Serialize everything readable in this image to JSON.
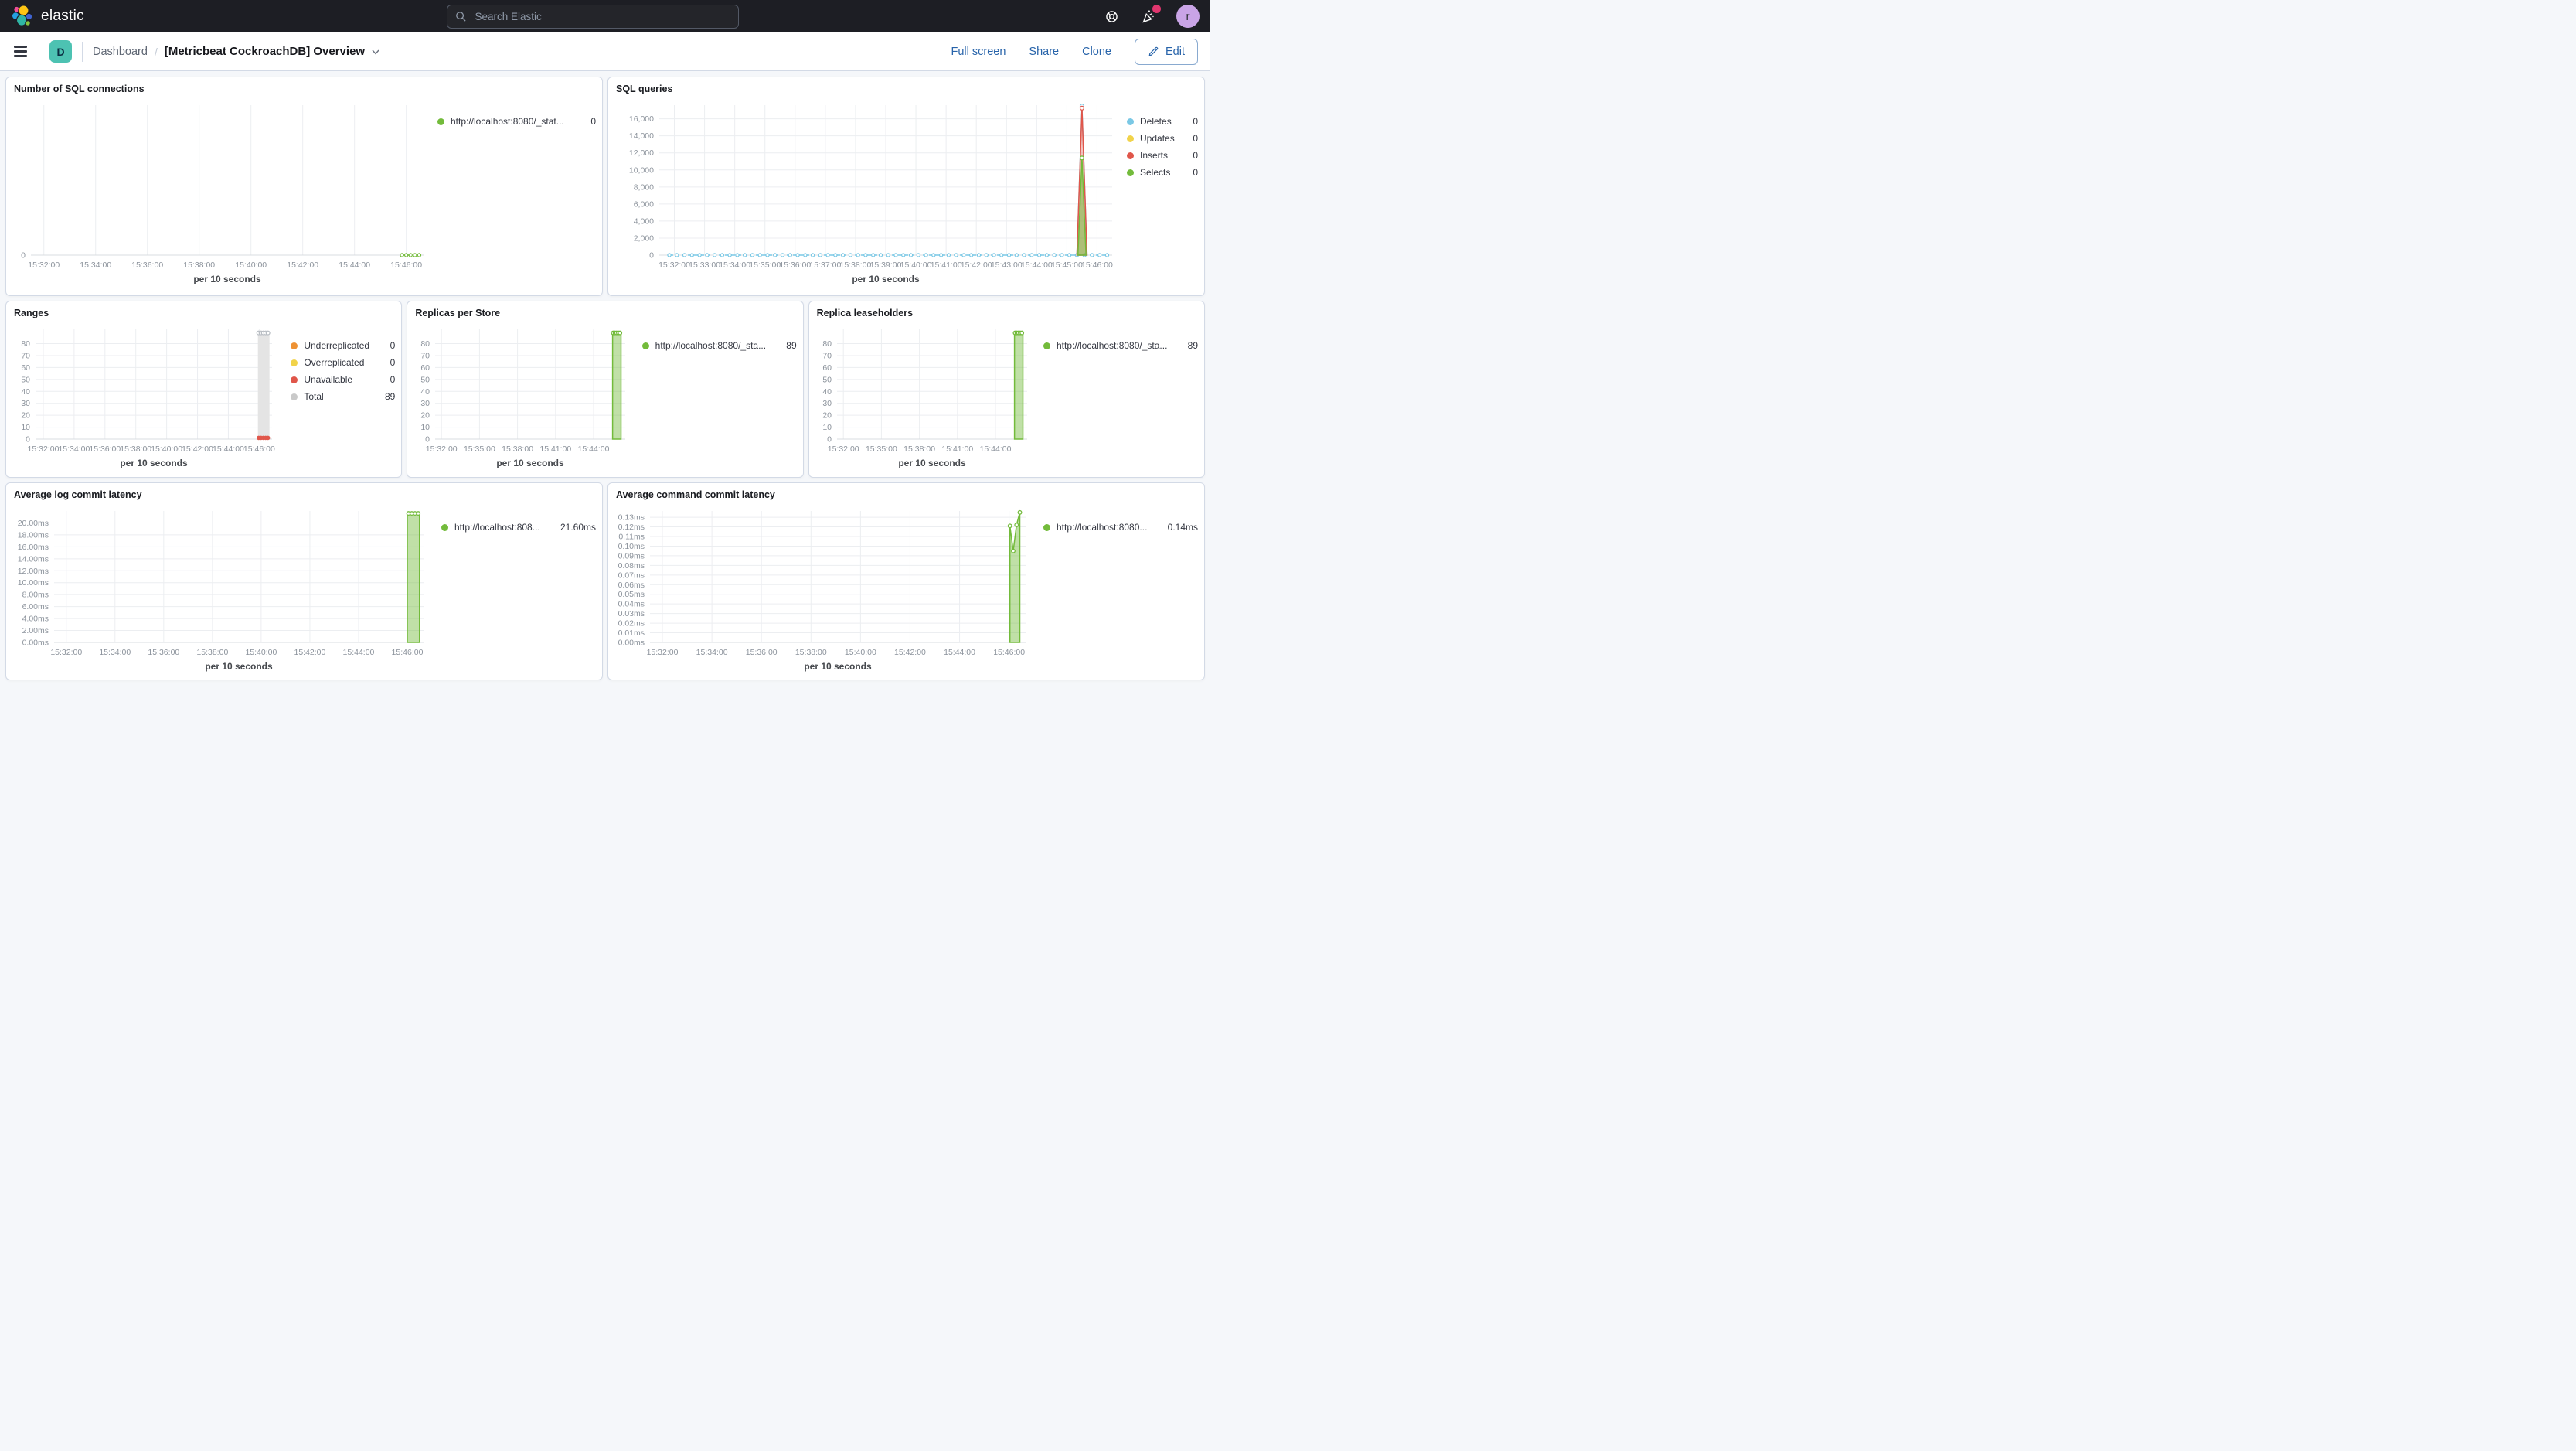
{
  "header": {
    "logo_text": "elastic",
    "search_placeholder": "Search Elastic",
    "avatar_initial": "r"
  },
  "nav": {
    "space_badge": "D",
    "breadcrumb_root": "Dashboard",
    "breadcrumb_current": "[Metricbeat CockroachDB] Overview",
    "full_screen": "Full screen",
    "share": "Share",
    "clone": "Clone",
    "edit_label": "Edit"
  },
  "colors": {
    "header_bg": "#1D1E24",
    "link_blue": "#2864AA",
    "badge_teal": "#4DC2B2",
    "avatar_purple": "#C9A4E6",
    "notification_pink": "#E0366E",
    "series_green": "#73BB3B",
    "series_blue": "#7AC8E5",
    "series_red": "#E0564A",
    "series_yellow": "#F1D34A",
    "series_orange": "#EE9234",
    "series_gray": "#C9C9C9"
  },
  "panels": [
    {
      "title": "Number of SQL connections",
      "legend": {
        "items": [
          {
            "label": "http://localhost:8080/_stat...",
            "value": "0",
            "color": "#73BB3B"
          }
        ]
      },
      "chart_data": {
        "type": "line",
        "x_axis_title": "per 10 seconds",
        "x_domain": [
          "15:31:30",
          "15:46:40"
        ],
        "y_domain": [
          0,
          10
        ],
        "margin_left": 30,
        "x_ticks": [
          "15:32:00",
          "15:34:00",
          "15:36:00",
          "15:38:00",
          "15:40:00",
          "15:42:00",
          "15:44:00",
          "15:46:00"
        ],
        "y_ticks": [
          {
            "label": "0",
            "v": 0
          }
        ],
        "marks": [
          {
            "type": "dashline",
            "color": "#73BB3B",
            "v": 0,
            "t0": "15:45:50",
            "t1": "15:46:30",
            "marker_every": 10
          }
        ]
      }
    },
    {
      "title": "SQL queries",
      "legend": {
        "items": [
          {
            "label": "Deletes",
            "value": "0",
            "color": "#7AC8E5"
          },
          {
            "label": "Updates",
            "value": "0",
            "color": "#F1D34A"
          },
          {
            "label": "Inserts",
            "value": "0",
            "color": "#E0564A"
          },
          {
            "label": "Selects",
            "value": "0",
            "color": "#73BB3B"
          }
        ]
      },
      "chart_data": {
        "type": "line",
        "x_axis_title": "per 10 seconds",
        "x_domain": [
          "15:31:30",
          "15:46:30"
        ],
        "y_domain": [
          0,
          17600
        ],
        "margin_left": 64,
        "x_ticks": [
          "15:32:00",
          "15:33:00",
          "15:34:00",
          "15:35:00",
          "15:36:00",
          "15:37:00",
          "15:38:00",
          "15:39:00",
          "15:40:00",
          "15:41:00",
          "15:42:00",
          "15:43:00",
          "15:44:00",
          "15:45:00",
          "15:46:00"
        ],
        "y_ticks": [
          {
            "label": "0",
            "v": 0
          },
          {
            "label": "2,000",
            "v": 2000
          },
          {
            "label": "4,000",
            "v": 4000
          },
          {
            "label": "6,000",
            "v": 6000
          },
          {
            "label": "8,000",
            "v": 8000
          },
          {
            "label": "10,000",
            "v": 10000
          },
          {
            "label": "12,000",
            "v": 12000
          },
          {
            "label": "14,000",
            "v": 14000
          },
          {
            "label": "16,000",
            "v": 16000
          }
        ],
        "marks": [
          {
            "type": "dashline",
            "color": "#7AC8E5",
            "v": 0,
            "t0": "15:31:50",
            "t1": "15:46:20",
            "marker_every": 15
          },
          {
            "type": "area",
            "points": [
              [
                "15:45:20",
                0
              ],
              [
                "15:45:30",
                17500
              ],
              [
                "15:45:40",
                0
              ]
            ],
            "fill": "#7AC8E5",
            "fill_opacity": 0,
            "stroke": "#7AC8E5"
          },
          {
            "type": "area",
            "points": [
              [
                "15:45:20",
                0
              ],
              [
                "15:45:30",
                17250
              ],
              [
                "15:45:40",
                0
              ]
            ],
            "fill": "#E0564A",
            "fill_opacity": 0.35,
            "stroke": "#E0564A"
          },
          {
            "type": "area",
            "points": [
              [
                "15:45:22",
                0
              ],
              [
                "15:45:30",
                11400
              ],
              [
                "15:45:38",
                0
              ]
            ],
            "fill": "#73BB3B",
            "fill_opacity": 0.55,
            "stroke": "#73BB3B"
          },
          {
            "type": "dots",
            "color": "#7AC8E5",
            "filled": false,
            "points": [
              [
                "15:45:30",
                17500
              ]
            ]
          },
          {
            "type": "dots",
            "color": "#E0564A",
            "filled": false,
            "points": [
              [
                "15:45:30",
                17250
              ]
            ]
          },
          {
            "type": "dots",
            "color": "#73BB3B",
            "filled": false,
            "points": [
              [
                "15:45:30",
                11400
              ]
            ]
          }
        ]
      }
    },
    {
      "title": "Ranges",
      "legend": {
        "items": [
          {
            "label": "Underreplicated",
            "value": "0",
            "color": "#EE9234"
          },
          {
            "label": "Overreplicated",
            "value": "0",
            "color": "#F1D34A"
          },
          {
            "label": "Unavailable",
            "value": "0",
            "color": "#E0564A"
          },
          {
            "label": "Total",
            "value": "89",
            "color": "#C9C9C9"
          }
        ]
      },
      "chart_data": {
        "type": "bar",
        "x_axis_title": "per 10 seconds",
        "x_domain": [
          "15:31:30",
          "15:46:50"
        ],
        "y_domain": [
          0,
          92
        ],
        "margin_left": 36,
        "x_ticks": [
          "15:32:00",
          "15:34:00",
          "15:36:00",
          "15:38:00",
          "15:40:00",
          "15:42:00",
          "15:44:00",
          "15:46:00"
        ],
        "y_ticks": [
          {
            "label": "0",
            "v": 0
          },
          {
            "label": "10",
            "v": 10
          },
          {
            "label": "20",
            "v": 20
          },
          {
            "label": "30",
            "v": 30
          },
          {
            "label": "40",
            "v": 40
          },
          {
            "label": "50",
            "v": 50
          },
          {
            "label": "60",
            "v": 60
          },
          {
            "label": "70",
            "v": 70
          },
          {
            "label": "80",
            "v": 80
          }
        ],
        "marks": [
          {
            "type": "area",
            "points": [
              [
                "15:45:55",
                89
              ],
              [
                "15:46:40",
                89
              ]
            ],
            "fill": "#E4E4E4",
            "fill_opacity": 1,
            "stroke": "none"
          },
          {
            "type": "dots",
            "color": "#B9BEC4",
            "filled": false,
            "r": 2.4,
            "points": [
              [
                "15:45:58",
                89
              ],
              [
                "15:46:07",
                89
              ],
              [
                "15:46:16",
                89
              ],
              [
                "15:46:25",
                89
              ],
              [
                "15:46:34",
                89
              ]
            ]
          },
          {
            "type": "dots",
            "color": "#E0564A",
            "filled": true,
            "r": 2.8,
            "points": [
              [
                "15:45:58",
                1
              ],
              [
                "15:46:07",
                1
              ],
              [
                "15:46:16",
                1
              ],
              [
                "15:46:25",
                1
              ],
              [
                "15:46:34",
                1
              ]
            ]
          }
        ]
      }
    },
    {
      "title": "Replicas per Store",
      "legend": {
        "items": [
          {
            "label": "http://localhost:8080/_sta...",
            "value": "89",
            "color": "#73BB3B"
          }
        ]
      },
      "chart_data": {
        "type": "bar",
        "x_axis_title": "per 10 seconds",
        "x_domain": [
          "15:31:30",
          "15:46:30"
        ],
        "y_domain": [
          0,
          92
        ],
        "margin_left": 34,
        "x_ticks": [
          "15:32:00",
          "15:35:00",
          "15:38:00",
          "15:41:00",
          "15:44:00"
        ],
        "y_ticks": [
          {
            "label": "0",
            "v": 0
          },
          {
            "label": "10",
            "v": 10
          },
          {
            "label": "20",
            "v": 20
          },
          {
            "label": "30",
            "v": 30
          },
          {
            "label": "40",
            "v": 40
          },
          {
            "label": "50",
            "v": 50
          },
          {
            "label": "60",
            "v": 60
          },
          {
            "label": "70",
            "v": 70
          },
          {
            "label": "80",
            "v": 80
          }
        ],
        "marks": [
          {
            "type": "area",
            "points": [
              [
                "15:45:30",
                89
              ],
              [
                "15:46:10",
                89
              ]
            ],
            "fill": "#73BB3B",
            "fill_opacity": 0.45,
            "stroke": "#73BB3B"
          },
          {
            "type": "dots",
            "color": "#73BB3B",
            "filled": false,
            "r": 2.3,
            "points": [
              [
                "15:45:33",
                89
              ],
              [
                "15:45:41",
                89
              ],
              [
                "15:45:49",
                89
              ],
              [
                "15:45:57",
                89
              ],
              [
                "15:46:05",
                89
              ]
            ]
          }
        ]
      }
    },
    {
      "title": "Replica leaseholders",
      "legend": {
        "items": [
          {
            "label": "http://localhost:8080/_sta...",
            "value": "89",
            "color": "#73BB3B"
          }
        ]
      },
      "chart_data": {
        "type": "bar",
        "x_axis_title": "per 10 seconds",
        "x_domain": [
          "15:31:30",
          "15:46:30"
        ],
        "y_domain": [
          0,
          92
        ],
        "margin_left": 34,
        "x_ticks": [
          "15:32:00",
          "15:35:00",
          "15:38:00",
          "15:41:00",
          "15:44:00"
        ],
        "y_ticks": [
          {
            "label": "0",
            "v": 0
          },
          {
            "label": "10",
            "v": 10
          },
          {
            "label": "20",
            "v": 20
          },
          {
            "label": "30",
            "v": 30
          },
          {
            "label": "40",
            "v": 40
          },
          {
            "label": "50",
            "v": 50
          },
          {
            "label": "60",
            "v": 60
          },
          {
            "label": "70",
            "v": 70
          },
          {
            "label": "80",
            "v": 80
          }
        ],
        "marks": [
          {
            "type": "area",
            "points": [
              [
                "15:45:30",
                89
              ],
              [
                "15:46:10",
                89
              ]
            ],
            "fill": "#73BB3B",
            "fill_opacity": 0.45,
            "stroke": "#73BB3B"
          },
          {
            "type": "dots",
            "color": "#73BB3B",
            "filled": false,
            "r": 2.3,
            "points": [
              [
                "15:45:33",
                89
              ],
              [
                "15:45:41",
                89
              ],
              [
                "15:45:49",
                89
              ],
              [
                "15:45:57",
                89
              ],
              [
                "15:46:05",
                89
              ]
            ]
          }
        ]
      }
    },
    {
      "title": "Average log commit latency",
      "legend": {
        "items": [
          {
            "label": "http://localhost:808...",
            "value": "21.60ms",
            "color": "#73BB3B"
          }
        ]
      },
      "chart_data": {
        "type": "area",
        "x_axis_title": "per 10 seconds",
        "x_domain": [
          "15:31:30",
          "15:46:40"
        ],
        "y_domain": [
          0,
          22
        ],
        "margin_left": 60,
        "x_ticks": [
          "15:32:00",
          "15:34:00",
          "15:36:00",
          "15:38:00",
          "15:40:00",
          "15:42:00",
          "15:44:00",
          "15:46:00"
        ],
        "y_ticks": [
          {
            "label": "0.00ms",
            "v": 0
          },
          {
            "label": "2.00ms",
            "v": 2
          },
          {
            "label": "4.00ms",
            "v": 4
          },
          {
            "label": "6.00ms",
            "v": 6
          },
          {
            "label": "8.00ms",
            "v": 8
          },
          {
            "label": "10.00ms",
            "v": 10
          },
          {
            "label": "12.00ms",
            "v": 12
          },
          {
            "label": "14.00ms",
            "v": 14
          },
          {
            "label": "16.00ms",
            "v": 16
          },
          {
            "label": "18.00ms",
            "v": 18
          },
          {
            "label": "20.00ms",
            "v": 20
          }
        ],
        "marks": [
          {
            "type": "area",
            "points": [
              [
                "15:46:00",
                21.6
              ],
              [
                "15:46:30",
                21.6
              ]
            ],
            "fill": "#73BB3B",
            "fill_opacity": 0.45,
            "stroke": "#73BB3B"
          },
          {
            "type": "dots",
            "color": "#73BB3B",
            "filled": false,
            "r": 2.3,
            "points": [
              [
                "15:46:03",
                21.6
              ],
              [
                "15:46:11",
                21.6
              ],
              [
                "15:46:19",
                21.6
              ],
              [
                "15:46:27",
                21.6
              ]
            ]
          }
        ]
      }
    },
    {
      "title": "Average command commit latency",
      "legend": {
        "items": [
          {
            "label": "http://localhost:8080...",
            "value": "0.14ms",
            "color": "#73BB3B"
          }
        ]
      },
      "chart_data": {
        "type": "area",
        "x_axis_title": "per 10 seconds",
        "x_domain": [
          "15:31:30",
          "15:46:40"
        ],
        "y_domain": [
          0,
          0.1365
        ],
        "margin_left": 52,
        "x_ticks": [
          "15:32:00",
          "15:34:00",
          "15:36:00",
          "15:38:00",
          "15:40:00",
          "15:42:00",
          "15:44:00",
          "15:46:00"
        ],
        "y_ticks": [
          {
            "label": "0.00ms",
            "v": 0
          },
          {
            "label": "0.01ms",
            "v": 0.01
          },
          {
            "label": "0.02ms",
            "v": 0.02
          },
          {
            "label": "0.03ms",
            "v": 0.03
          },
          {
            "label": "0.04ms",
            "v": 0.04
          },
          {
            "label": "0.05ms",
            "v": 0.05
          },
          {
            "label": "0.06ms",
            "v": 0.06
          },
          {
            "label": "0.07ms",
            "v": 0.07
          },
          {
            "label": "0.08ms",
            "v": 0.08
          },
          {
            "label": "0.09ms",
            "v": 0.09
          },
          {
            "label": "0.10ms",
            "v": 0.1
          },
          {
            "label": "0.11ms",
            "v": 0.11
          },
          {
            "label": "0.12ms",
            "v": 0.12
          },
          {
            "label": "0.13ms",
            "v": 0.13
          }
        ],
        "marks": [
          {
            "type": "area",
            "points": [
              [
                "15:46:02",
                0.121
              ],
              [
                "15:46:10",
                0.095
              ],
              [
                "15:46:18",
                0.122
              ],
              [
                "15:46:26",
                0.135
              ]
            ],
            "fill": "#73BB3B",
            "fill_opacity": 0.45,
            "stroke": "#73BB3B"
          },
          {
            "type": "dots",
            "color": "#73BB3B",
            "filled": false,
            "r": 2.3,
            "points": [
              [
                "15:46:02",
                0.121
              ],
              [
                "15:46:10",
                0.095
              ],
              [
                "15:46:18",
                0.122
              ],
              [
                "15:46:26",
                0.135
              ]
            ]
          }
        ]
      }
    }
  ]
}
